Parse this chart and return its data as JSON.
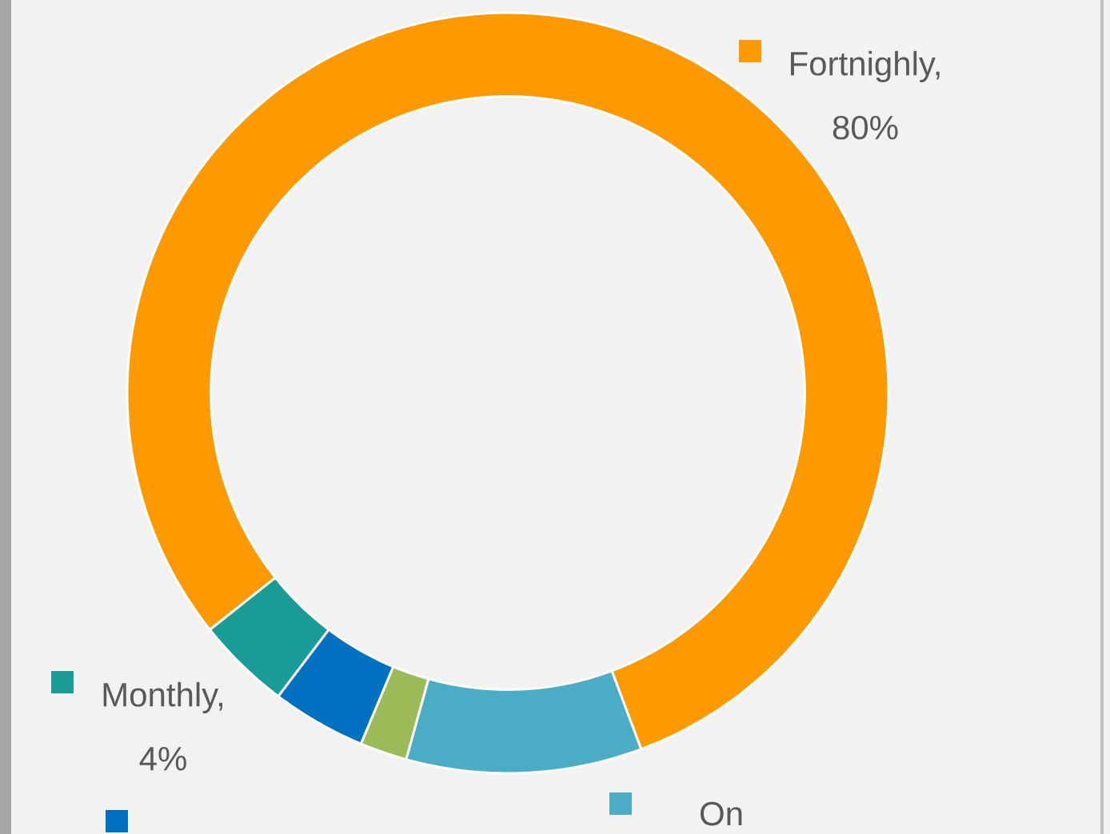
{
  "chart_data": {
    "type": "donut",
    "categories": [
      null,
      "On",
      null,
      null,
      null
    ],
    "values": [
      80,
      10,
      2,
      4,
      4
    ],
    "colors": [
      "#ff9900",
      "#4bacc6",
      "#9bbb59",
      "#0070c0",
      "#1a9c96"
    ],
    "value_labels": [
      "Fortnighly, 80%",
      null,
      null,
      null,
      "Monthly, 4%"
    ]
  }
}
